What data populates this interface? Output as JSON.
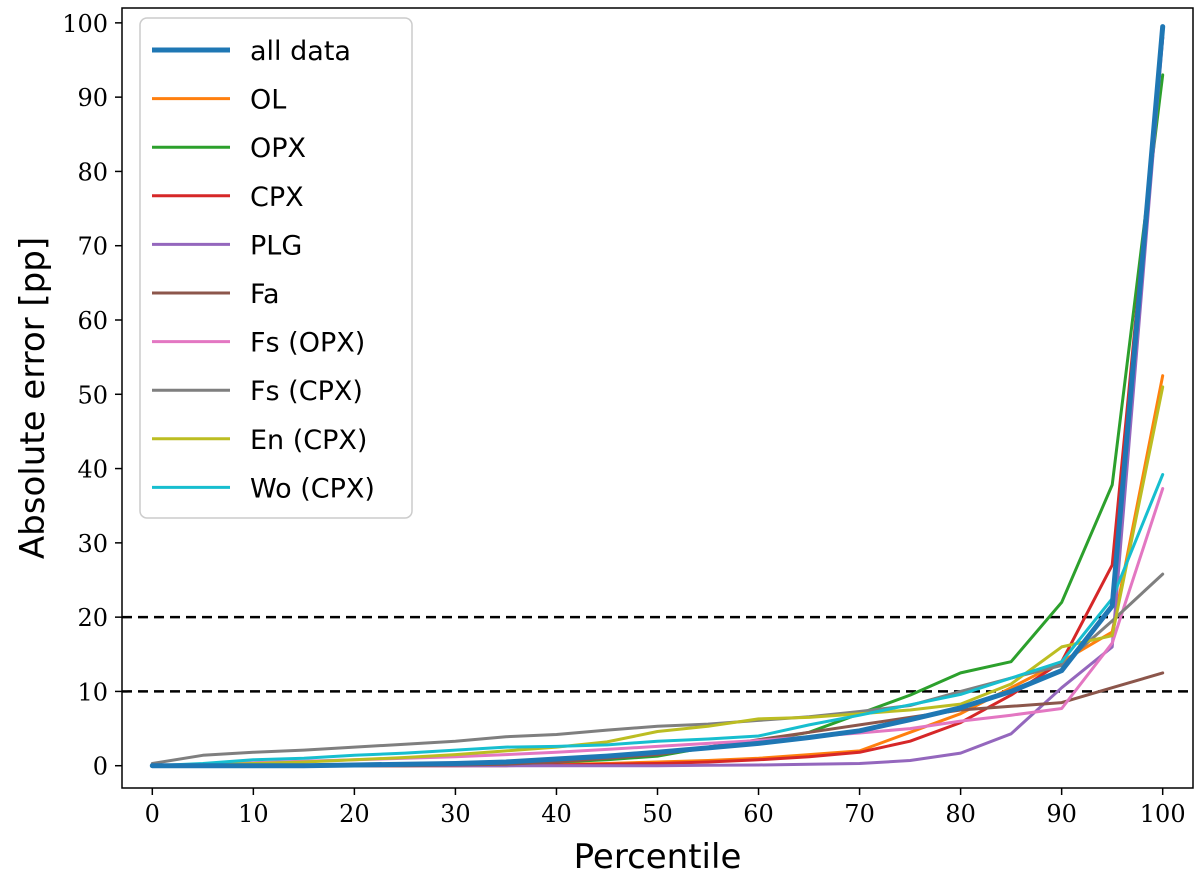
{
  "chart_data": {
    "type": "line",
    "title": "",
    "xlabel": "Percentile",
    "ylabel": "Absolute error [pp]",
    "xlim": [
      -3,
      103
    ],
    "ylim": [
      -3,
      102
    ],
    "xticks": [
      0,
      10,
      20,
      30,
      40,
      50,
      60,
      70,
      80,
      90,
      100
    ],
    "yticks": [
      0,
      10,
      20,
      30,
      40,
      50,
      60,
      70,
      80,
      90,
      100
    ],
    "grid": false,
    "legend_position": "top-left",
    "reference_lines": [
      {
        "y": 10,
        "style": "dashed",
        "color": "#000000"
      },
      {
        "y": 20,
        "style": "dashed",
        "color": "#000000"
      }
    ],
    "x": [
      0,
      5,
      10,
      15,
      20,
      25,
      30,
      35,
      40,
      45,
      50,
      55,
      60,
      65,
      70,
      75,
      80,
      85,
      90,
      95,
      100
    ],
    "series": [
      {
        "name": "OL",
        "color": "#ff7f0e",
        "width": 3,
        "values": [
          0,
          0,
          0,
          0,
          0,
          0,
          0,
          0.1,
          0.2,
          0.3,
          0.5,
          0.7,
          1.0,
          1.5,
          2.0,
          4.5,
          7.0,
          10.5,
          14.0,
          18.0,
          52.5
        ]
      },
      {
        "name": "OPX",
        "color": "#2ca02c",
        "width": 3,
        "values": [
          0,
          0,
          0,
          0,
          0.1,
          0.1,
          0.2,
          0.3,
          0.5,
          0.8,
          1.3,
          2.5,
          3.3,
          4.5,
          7.0,
          9.5,
          12.5,
          14.0,
          22.0,
          37.8,
          93.0
        ]
      },
      {
        "name": "CPX",
        "color": "#d62728",
        "width": 3,
        "values": [
          0,
          0,
          0,
          0,
          0,
          0,
          0,
          0,
          0.1,
          0.2,
          0.3,
          0.5,
          0.8,
          1.2,
          1.8,
          3.3,
          5.8,
          9.5,
          14.0,
          27.0,
          98.0
        ]
      },
      {
        "name": "PLG",
        "color": "#9467bd",
        "width": 3,
        "values": [
          0,
          0,
          0,
          0,
          0,
          0,
          0,
          0,
          0,
          0,
          0,
          0.05,
          0.1,
          0.2,
          0.3,
          0.7,
          1.7,
          4.3,
          10.5,
          16.0,
          98.0
        ]
      },
      {
        "name": "Fa",
        "color": "#8c564b",
        "width": 3,
        "values": [
          0,
          0,
          0,
          0,
          0,
          0,
          0.1,
          0.2,
          0.5,
          1.0,
          1.5,
          2.5,
          3.5,
          4.5,
          5.5,
          6.5,
          7.5,
          8.0,
          8.5,
          10.5,
          12.5
        ]
      },
      {
        "name": "Fs (OPX)",
        "color": "#e377c2",
        "width": 3,
        "values": [
          0,
          0.2,
          0.4,
          0.6,
          0.8,
          1.0,
          1.2,
          1.5,
          1.8,
          2.2,
          2.6,
          3.0,
          3.4,
          3.9,
          4.4,
          5.0,
          6.0,
          6.8,
          7.7,
          16.5,
          37.3
        ]
      },
      {
        "name": "Fs (CPX)",
        "color": "#7f7f7f",
        "width": 3,
        "values": [
          0.3,
          1.4,
          1.8,
          2.1,
          2.5,
          2.9,
          3.3,
          3.9,
          4.2,
          4.8,
          5.3,
          5.6,
          6.1,
          6.6,
          7.3,
          8.1,
          10.0,
          11.8,
          13.5,
          19.5,
          25.8
        ]
      },
      {
        "name": "En (CPX)",
        "color": "#bcbd22",
        "width": 3,
        "values": [
          0,
          0.1,
          0.3,
          0.5,
          0.8,
          1.1,
          1.5,
          2.0,
          2.5,
          3.2,
          4.6,
          5.3,
          6.3,
          6.5,
          7.0,
          7.5,
          8.3,
          11.0,
          16.0,
          17.5,
          51.0
        ]
      },
      {
        "name": "Wo (CPX)",
        "color": "#17becf",
        "width": 3,
        "values": [
          0,
          0.3,
          0.8,
          1.0,
          1.4,
          1.7,
          2.1,
          2.5,
          2.6,
          2.8,
          3.3,
          3.6,
          4.0,
          5.5,
          6.8,
          8.2,
          9.6,
          11.8,
          14.0,
          22.5,
          39.2
        ]
      },
      {
        "name": "all data",
        "color": "#1f77b4",
        "width": 5,
        "values": [
          0,
          0,
          0,
          0,
          0.1,
          0.2,
          0.3,
          0.5,
          0.9,
          1.3,
          1.8,
          2.4,
          3.0,
          3.8,
          4.7,
          6.2,
          7.8,
          10.0,
          12.8,
          21.5,
          99.5
        ]
      }
    ],
    "legend_order": [
      "all data",
      "OL",
      "OPX",
      "CPX",
      "PLG",
      "Fa",
      "Fs (OPX)",
      "Fs (CPX)",
      "En (CPX)",
      "Wo (CPX)"
    ]
  }
}
